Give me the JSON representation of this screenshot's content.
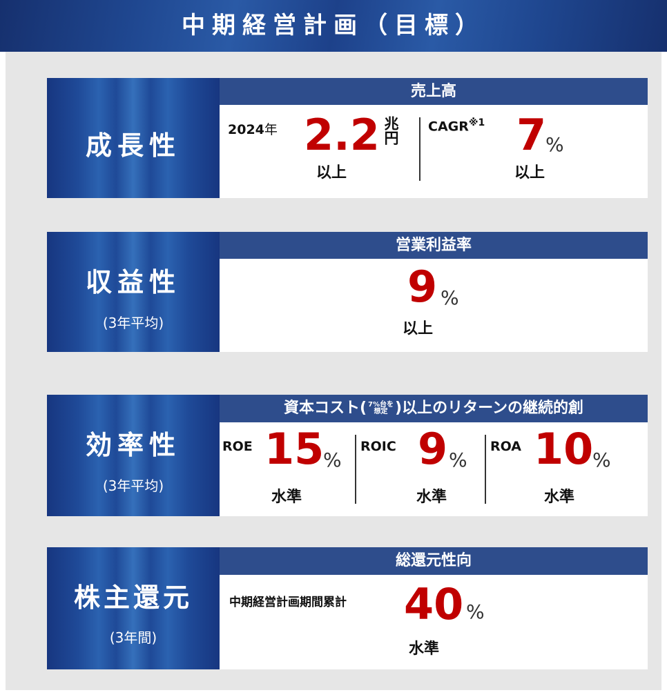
{
  "title": "中期経営計画（目標）",
  "sections": [
    {
      "label": "成長性",
      "header": "売上高",
      "items": [
        {
          "prefix": "2024",
          "prefix_unit": "年",
          "value": "2.2",
          "unit": "兆円",
          "note": "以上"
        },
        {
          "prefix": "CAGR",
          "sup": "※1",
          "value": "7",
          "unit": "%",
          "note": "以上"
        }
      ]
    },
    {
      "label": "収益性",
      "sub": "(3年平均)",
      "header": "営業利益率",
      "items": [
        {
          "value": "9",
          "unit": "%",
          "note": "以上"
        }
      ]
    },
    {
      "label": "効率性",
      "sub": "(3年平均)",
      "header_parts": [
        "資本コスト(",
        "7%台を",
        "想定",
        ")以上のリターンの継続的創"
      ],
      "items": [
        {
          "prefix": "ROE",
          "value": "15",
          "unit": "%",
          "note": "水準"
        },
        {
          "prefix": "ROIC",
          "value": "9",
          "unit": "%",
          "note": "水準"
        },
        {
          "prefix": "ROA",
          "value": "10",
          "unit": "%",
          "note": "水準"
        }
      ]
    },
    {
      "label": "株主還元",
      "sub": "(3年間)",
      "header": "総還元性向",
      "items": [
        {
          "prefix": "中期経営計画期間累計",
          "value": "40",
          "unit": "%",
          "note": "水準"
        }
      ]
    }
  ]
}
